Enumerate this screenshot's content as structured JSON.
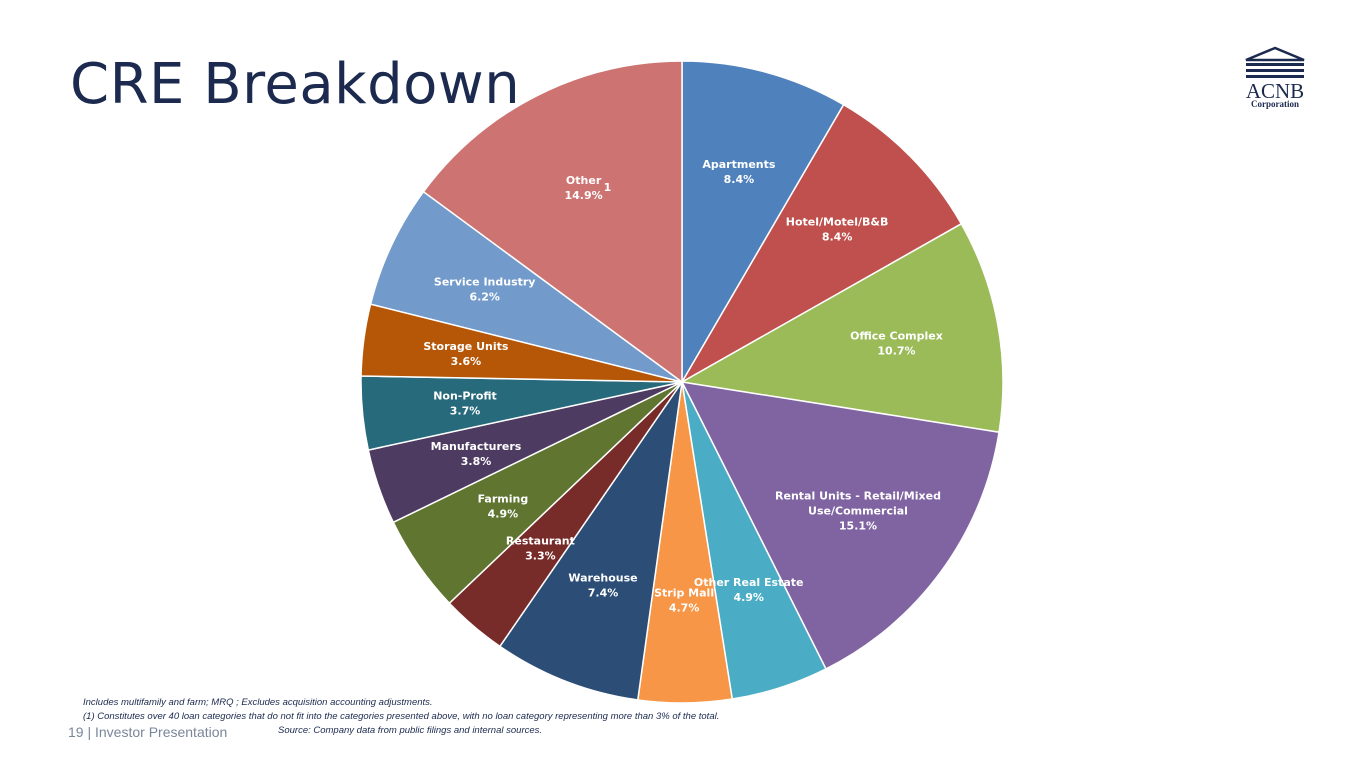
{
  "slide": {
    "title": "CRE Breakdown",
    "logo_name": "ACNB",
    "logo_sub": "Corporation",
    "page_number": "19",
    "footer_separator": "|",
    "footer_label": "Investor Presentation",
    "notes": [
      "Includes multifamily and farm; MRQ ; Excludes acquisition accounting adjustments.",
      "(1) Constitutes over 40 loan categories that do not fit into the categories presented above, with no loan category representing more than 3% of the total."
    ],
    "source": "Source: Company data from public filings and internal sources."
  },
  "chart_data": {
    "type": "pie",
    "unit": "%",
    "start": "12 o'clock",
    "direction": "clockwise",
    "slices": [
      {
        "label": "Apartments",
        "value": 8.4,
        "color": "#4f81bd"
      },
      {
        "label": "Hotel/Motel/B&B",
        "value": 8.4,
        "color": "#c0504d"
      },
      {
        "label": "Office Complex",
        "value": 10.7,
        "color": "#9bbb59"
      },
      {
        "label": "Rental Units - Retail/Mixed Use/Commercial",
        "label_lines": [
          "Rental Units - Retail/Mixed",
          "Use/Commercial"
        ],
        "value": 15.1,
        "color": "#8064a2"
      },
      {
        "label": "Other Real Estate",
        "value": 4.9,
        "color": "#4bacc6"
      },
      {
        "label": "Strip Mall",
        "value": 4.7,
        "color": "#f79646"
      },
      {
        "label": "Warehouse",
        "value": 7.4,
        "color": "#2c4d75"
      },
      {
        "label": "Restaurant",
        "value": 3.3,
        "color": "#772c2a"
      },
      {
        "label": "Farming",
        "value": 4.9,
        "color": "#5f7530"
      },
      {
        "label": "Manufacturers",
        "value": 3.8,
        "color": "#4d3b62"
      },
      {
        "label": "Non-Profit",
        "value": 3.7,
        "color": "#276a7c"
      },
      {
        "label": "Storage Units",
        "value": 3.6,
        "color": "#b65708"
      },
      {
        "label": "Service Industry",
        "value": 6.2,
        "color": "#729aca"
      },
      {
        "label": "Other",
        "value": 14.9,
        "color": "#cd7371",
        "footnote": "1"
      }
    ]
  }
}
